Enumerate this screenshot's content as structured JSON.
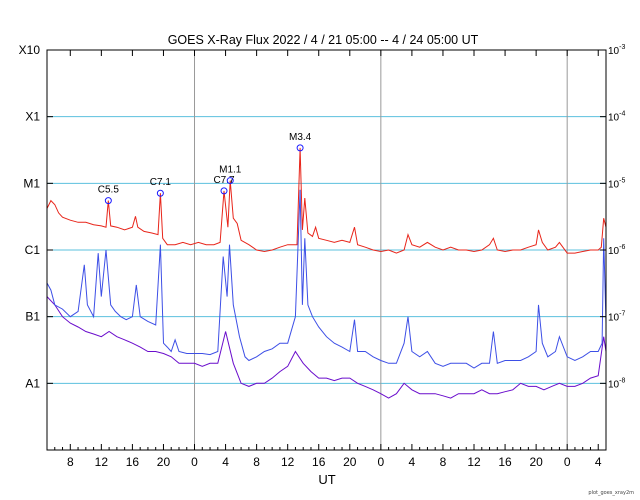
{
  "chart_data": {
    "type": "line",
    "title": "GOES X-Ray Flux   2022  /  4  /  21    05:00  --   4  /  24    05:00    UT",
    "xlabel": "UT",
    "y_scale": "log",
    "ylim": [
      1e-09,
      0.001
    ],
    "x_start_hour": 5,
    "x_end_hour": 77,
    "x_tick_hours": [
      8,
      12,
      16,
      20,
      24,
      28,
      32,
      36,
      40,
      44,
      48,
      52,
      56,
      60,
      64,
      68,
      72,
      76
    ],
    "x_tick_labels": [
      "8",
      "12",
      "16",
      "20",
      "0",
      "4",
      "8",
      "12",
      "16",
      "20",
      "0",
      "4",
      "8",
      "12",
      "16",
      "20",
      "0",
      "4"
    ],
    "day_boundaries_hours": [
      24,
      48,
      72
    ],
    "left_axis": [
      {
        "label": "X10",
        "value": 0.001
      },
      {
        "label": "X1",
        "value": 0.0001
      },
      {
        "label": "M1",
        "value": 1e-05
      },
      {
        "label": "C1",
        "value": 1e-06
      },
      {
        "label": "B1",
        "value": 1e-07
      },
      {
        "label": "A1",
        "value": 1e-08
      }
    ],
    "right_axis": [
      {
        "base": "10",
        "exp": "-3",
        "value": 0.001
      },
      {
        "base": "10",
        "exp": "-4",
        "value": 0.0001
      },
      {
        "base": "10",
        "exp": "-5",
        "value": 1e-05
      },
      {
        "base": "10",
        "exp": "-6",
        "value": 1e-06
      },
      {
        "base": "10",
        "exp": "-7",
        "value": 1e-07
      },
      {
        "base": "10",
        "exp": "-8",
        "value": 1e-08
      }
    ],
    "grid_levels": [
      0.0001,
      1e-05,
      1e-06,
      1e-07,
      1e-08
    ],
    "grid_color": "#5bc0de",
    "flares": [
      {
        "label": "C5.5",
        "hour": 12.9,
        "value": 5.5e-06
      },
      {
        "label": "C7.1",
        "hour": 19.6,
        "value": 7.1e-06
      },
      {
        "label": "C7.7",
        "hour": 27.8,
        "value": 7.7e-06
      },
      {
        "label": "M1.1",
        "hour": 28.6,
        "value": 1.1e-05
      },
      {
        "label": "M3.4",
        "hour": 37.6,
        "value": 3.4e-05
      }
    ],
    "series": [
      {
        "color": "#e8251a",
        "points": [
          [
            5,
            4.2e-06
          ],
          [
            5.5,
            5.5e-06
          ],
          [
            6,
            4.8e-06
          ],
          [
            6.5,
            3.6e-06
          ],
          [
            7,
            3.1e-06
          ],
          [
            8,
            2.8e-06
          ],
          [
            9,
            2.6e-06
          ],
          [
            10,
            2.6e-06
          ],
          [
            11,
            2.4e-06
          ],
          [
            12,
            2.3e-06
          ],
          [
            12.6,
            2.2e-06
          ],
          [
            12.9,
            5.5e-06
          ],
          [
            13.2,
            2.3e-06
          ],
          [
            14,
            2.2e-06
          ],
          [
            15,
            2e-06
          ],
          [
            16,
            2.2e-06
          ],
          [
            16.4,
            3.2e-06
          ],
          [
            16.7,
            2.2e-06
          ],
          [
            17.5,
            1.9e-06
          ],
          [
            18.5,
            1.8e-06
          ],
          [
            19.3,
            1.7e-06
          ],
          [
            19.6,
            7.1e-06
          ],
          [
            19.9,
            1.5e-06
          ],
          [
            20.5,
            1.2e-06
          ],
          [
            21.5,
            1.2e-06
          ],
          [
            22.5,
            1.3e-06
          ],
          [
            23.5,
            1.2e-06
          ],
          [
            24.5,
            1.3e-06
          ],
          [
            25.5,
            1.2e-06
          ],
          [
            26.5,
            1.2e-06
          ],
          [
            27.3,
            1.3e-06
          ],
          [
            27.8,
            7.7e-06
          ],
          [
            28.3,
            2.2e-06
          ],
          [
            28.6,
            1.1e-05
          ],
          [
            29.0,
            3e-06
          ],
          [
            29.5,
            2.5e-06
          ],
          [
            30,
            1.4e-06
          ],
          [
            31,
            1.2e-06
          ],
          [
            32,
            1e-06
          ],
          [
            33,
            9.5e-07
          ],
          [
            34,
            1e-06
          ],
          [
            35,
            1.1e-06
          ],
          [
            36,
            1.2e-06
          ],
          [
            37.2,
            1.2e-06
          ],
          [
            37.6,
            3.4e-05
          ],
          [
            37.9,
            2e-06
          ],
          [
            38.2,
            6e-06
          ],
          [
            38.6,
            1.8e-06
          ],
          [
            39.2,
            1.6e-06
          ],
          [
            39.6,
            2.2e-06
          ],
          [
            40,
            1.5e-06
          ],
          [
            41,
            1.4e-06
          ],
          [
            42,
            1.3e-06
          ],
          [
            43,
            1.4e-06
          ],
          [
            44,
            1.3e-06
          ],
          [
            44.6,
            2.2e-06
          ],
          [
            45,
            1.2e-06
          ],
          [
            46,
            1.1e-06
          ],
          [
            47,
            1e-06
          ],
          [
            48,
            9.5e-07
          ],
          [
            49,
            1e-06
          ],
          [
            50,
            9e-07
          ],
          [
            51,
            1e-06
          ],
          [
            51.5,
            1.7e-06
          ],
          [
            52,
            1.2e-06
          ],
          [
            53,
            1.1e-06
          ],
          [
            54,
            1.3e-06
          ],
          [
            55,
            1.1e-06
          ],
          [
            56,
            1e-06
          ],
          [
            57,
            1.1e-06
          ],
          [
            58,
            1e-06
          ],
          [
            59,
            1e-06
          ],
          [
            60,
            9.5e-07
          ],
          [
            61,
            1e-06
          ],
          [
            62,
            1.2e-06
          ],
          [
            62.5,
            1.5e-06
          ],
          [
            63,
            1e-06
          ],
          [
            64,
            9.5e-07
          ],
          [
            65,
            1e-06
          ],
          [
            66,
            1e-06
          ],
          [
            67,
            1.1e-06
          ],
          [
            68,
            1.2e-06
          ],
          [
            68.3,
            2e-06
          ],
          [
            68.8,
            1.3e-06
          ],
          [
            69.5,
            1e-06
          ],
          [
            70.5,
            1.1e-06
          ],
          [
            71,
            1.3e-06
          ],
          [
            72,
            9e-07
          ],
          [
            73,
            9e-07
          ],
          [
            74,
            9.5e-07
          ],
          [
            75,
            1e-06
          ],
          [
            76,
            1e-06
          ],
          [
            76.4,
            1.1e-06
          ],
          [
            76.7,
            3e-06
          ],
          [
            77,
            2.2e-06
          ]
        ]
      },
      {
        "color": "#6a0dcc",
        "points": [
          [
            5,
            2e-07
          ],
          [
            6,
            1.5e-07
          ],
          [
            7,
            1e-07
          ],
          [
            8,
            8e-08
          ],
          [
            9,
            7e-08
          ],
          [
            10,
            6e-08
          ],
          [
            11,
            5.5e-08
          ],
          [
            12,
            5e-08
          ],
          [
            13,
            6e-08
          ],
          [
            14,
            5e-08
          ],
          [
            15,
            4.5e-08
          ],
          [
            16,
            4e-08
          ],
          [
            17,
            3.5e-08
          ],
          [
            18,
            3e-08
          ],
          [
            19,
            3e-08
          ],
          [
            20,
            2.8e-08
          ],
          [
            21,
            2.5e-08
          ],
          [
            22,
            2e-08
          ],
          [
            23,
            2e-08
          ],
          [
            24,
            2e-08
          ],
          [
            25,
            1.8e-08
          ],
          [
            26,
            2e-08
          ],
          [
            27,
            2e-08
          ],
          [
            28,
            6e-08
          ],
          [
            29,
            2e-08
          ],
          [
            30,
            1e-08
          ],
          [
            31,
            9e-09
          ],
          [
            32,
            1e-08
          ],
          [
            33,
            1e-08
          ],
          [
            34,
            1.2e-08
          ],
          [
            35,
            1.5e-08
          ],
          [
            36,
            1.8e-08
          ],
          [
            37,
            3e-08
          ],
          [
            38,
            2e-08
          ],
          [
            39,
            1.5e-08
          ],
          [
            40,
            1.2e-08
          ],
          [
            41,
            1.2e-08
          ],
          [
            42,
            1.1e-08
          ],
          [
            43,
            1.2e-08
          ],
          [
            44,
            1.2e-08
          ],
          [
            45,
            1e-08
          ],
          [
            46,
            9e-09
          ],
          [
            47,
            8e-09
          ],
          [
            48,
            7e-09
          ],
          [
            49,
            6e-09
          ],
          [
            50,
            7e-09
          ],
          [
            51,
            1e-08
          ],
          [
            52,
            8e-09
          ],
          [
            53,
            7e-09
          ],
          [
            54,
            7e-09
          ],
          [
            55,
            7e-09
          ],
          [
            56,
            6.5e-09
          ],
          [
            57,
            6e-09
          ],
          [
            58,
            7e-09
          ],
          [
            59,
            7e-09
          ],
          [
            60,
            7e-09
          ],
          [
            61,
            8e-09
          ],
          [
            62,
            7e-09
          ],
          [
            63,
            7e-09
          ],
          [
            64,
            7.5e-09
          ],
          [
            65,
            8e-09
          ],
          [
            66,
            1e-08
          ],
          [
            67,
            9e-09
          ],
          [
            68,
            9e-09
          ],
          [
            69,
            8e-09
          ],
          [
            70,
            9e-09
          ],
          [
            71,
            1e-08
          ],
          [
            72,
            9e-09
          ],
          [
            73,
            9e-09
          ],
          [
            74,
            1e-08
          ],
          [
            75,
            1.2e-08
          ],
          [
            76,
            1.3e-08
          ],
          [
            76.7,
            5e-08
          ],
          [
            77,
            3e-08
          ]
        ]
      },
      {
        "color": "#3d4fe6",
        "points": [
          [
            5,
            3.2e-07
          ],
          [
            5.5,
            2.5e-07
          ],
          [
            6,
            1.5e-07
          ],
          [
            7,
            1.3e-07
          ],
          [
            8,
            1e-07
          ],
          [
            9,
            1.2e-07
          ],
          [
            9.8,
            6e-07
          ],
          [
            10.2,
            1.5e-07
          ],
          [
            11,
            1e-07
          ],
          [
            11.6,
            9e-07
          ],
          [
            12,
            2e-07
          ],
          [
            12.6,
            1e-06
          ],
          [
            13.2,
            1.5e-07
          ],
          [
            13.8,
            1.2e-07
          ],
          [
            14.5,
            1e-07
          ],
          [
            15.2,
            9e-08
          ],
          [
            16,
            1e-07
          ],
          [
            16.5,
            3e-07
          ],
          [
            17,
            1e-07
          ],
          [
            18,
            8.5e-08
          ],
          [
            19,
            7.5e-08
          ],
          [
            19.6,
            1.2e-06
          ],
          [
            20,
            4e-08
          ],
          [
            20.5,
            3.5e-08
          ],
          [
            21,
            3e-08
          ],
          [
            21.5,
            4.5e-08
          ],
          [
            22,
            3e-08
          ],
          [
            23,
            2.8e-08
          ],
          [
            24,
            2.8e-08
          ],
          [
            25,
            2.8e-08
          ],
          [
            26,
            2.7e-08
          ],
          [
            27,
            3e-08
          ],
          [
            27.7,
            8e-07
          ],
          [
            28.2,
            2e-07
          ],
          [
            28.5,
            1.2e-06
          ],
          [
            29.0,
            1.5e-07
          ],
          [
            29.8,
            5e-08
          ],
          [
            30.5,
            2.5e-08
          ],
          [
            31,
            2.2e-08
          ],
          [
            32,
            2.5e-08
          ],
          [
            33,
            3e-08
          ],
          [
            34,
            3.3e-08
          ],
          [
            35,
            4e-08
          ],
          [
            36,
            4e-08
          ],
          [
            37,
            1e-07
          ],
          [
            37.6,
            8e-06
          ],
          [
            37.9,
            1.5e-07
          ],
          [
            38.2,
            1.5e-06
          ],
          [
            38.6,
            1.5e-07
          ],
          [
            39.2,
            1e-07
          ],
          [
            40,
            7e-08
          ],
          [
            41,
            5e-08
          ],
          [
            42,
            4e-08
          ],
          [
            43,
            3.5e-08
          ],
          [
            44,
            3e-08
          ],
          [
            44.6,
            9e-08
          ],
          [
            45,
            3e-08
          ],
          [
            46,
            3e-08
          ],
          [
            47,
            2.5e-08
          ],
          [
            48,
            2.2e-08
          ],
          [
            49,
            2e-08
          ],
          [
            50,
            2e-08
          ],
          [
            51,
            4e-08
          ],
          [
            51.5,
            1e-07
          ],
          [
            52,
            3e-08
          ],
          [
            53,
            2.5e-08
          ],
          [
            54,
            3e-08
          ],
          [
            55,
            2e-08
          ],
          [
            56,
            1.8e-08
          ],
          [
            57,
            2e-08
          ],
          [
            58,
            2e-08
          ],
          [
            59,
            2e-08
          ],
          [
            60,
            1.7e-08
          ],
          [
            61,
            2e-08
          ],
          [
            62,
            2e-08
          ],
          [
            62.5,
            6e-08
          ],
          [
            63,
            2e-08
          ],
          [
            64,
            2.2e-08
          ],
          [
            65,
            2.2e-08
          ],
          [
            66,
            2.2e-08
          ],
          [
            67,
            2.5e-08
          ],
          [
            68,
            3e-08
          ],
          [
            68.3,
            1.5e-07
          ],
          [
            68.8,
            4e-08
          ],
          [
            69.5,
            2.5e-08
          ],
          [
            70.5,
            3e-08
          ],
          [
            71,
            5e-08
          ],
          [
            72,
            2.5e-08
          ],
          [
            73,
            2.2e-08
          ],
          [
            74,
            2.5e-08
          ],
          [
            75,
            3e-08
          ],
          [
            76,
            3e-08
          ],
          [
            76.5,
            4e-08
          ],
          [
            76.7,
            1.5e-06
          ],
          [
            77,
            8e-08
          ]
        ]
      }
    ]
  },
  "footer": {
    "credit": "plot_goes_xray2m"
  }
}
